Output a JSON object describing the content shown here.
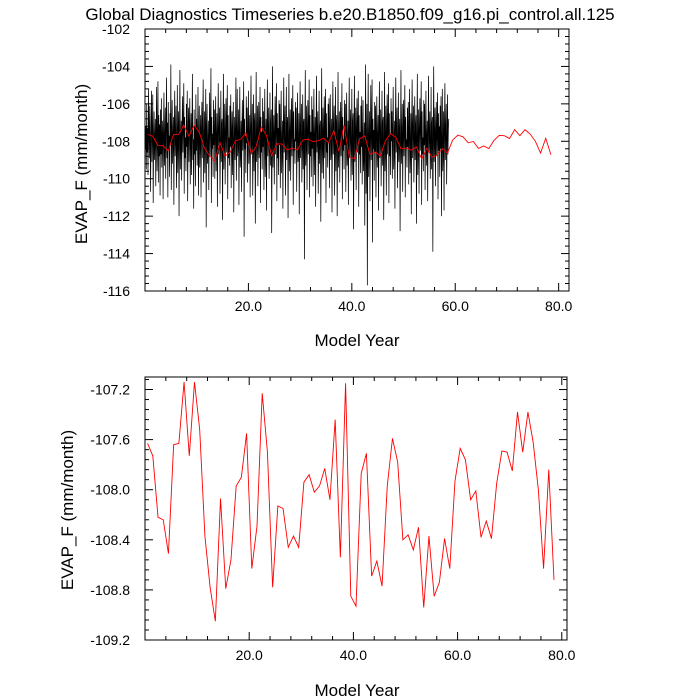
{
  "title": "Global Diagnostics Timeseries b.e20.B1850.f09_g16.pi_control.all.125",
  "colors": {
    "monthly": "#000000",
    "annual": "#ff0000"
  },
  "chart_data": [
    {
      "type": "line",
      "name": "monthly-and-annual",
      "xlabel": "Model Year",
      "ylabel": "EVAP_F (mm/month)",
      "xlim": [
        0.0,
        82.0
      ],
      "ylim": [
        -116,
        -102
      ],
      "x_ticks": [
        20.0,
        40.0,
        60.0,
        80.0
      ],
      "x_tick_labels": [
        "20.0",
        "40.0",
        "60.0",
        "80.0"
      ],
      "y_ticks": [
        -116,
        -114,
        -112,
        -110,
        -108,
        -106,
        -104,
        -102
      ],
      "y_tick_labels": [
        "-116",
        "-114",
        "-112",
        "-110",
        "-108",
        "-106",
        "-104",
        "-102"
      ],
      "series": [
        {
          "name": "monthly",
          "color": "#000000",
          "x_start": 0.0,
          "x_step": 0.0833333,
          "values": [
            -106.4,
            -108.4,
            -107.2,
            -109.5,
            -106.0,
            -108.6,
            -107.3,
            -109.8,
            -105.2,
            -107.7,
            -108.9,
            -106.1,
            -108.0,
            -110.7,
            -107.0,
            -105.3,
            -109.1,
            -107.6,
            -105.5,
            -111.3,
            -108.1,
            -106.4,
            -109.0,
            -107.9,
            -106.8,
            -110.4,
            -107.4,
            -105.1,
            -109.6,
            -108.2,
            -104.8,
            -110.2,
            -106.6,
            -108.8,
            -107.1,
            -110.9,
            -106.3,
            -108.7,
            -105.7,
            -109.4,
            -107.8,
            -106.9,
            -111.1,
            -107.5,
            -105.4,
            -109.3,
            -108.3,
            -106.2,
            -110.0,
            -107.3,
            -104.6,
            -108.9,
            -107.0,
            -111.0,
            -105.9,
            -108.5,
            -107.7,
            -109.9,
            -106.5,
            -108.1,
            -103.9,
            -110.6,
            -107.6,
            -105.8,
            -109.2,
            -108.0,
            -106.7,
            -111.4,
            -107.2,
            -105.3,
            -108.8,
            -107.9,
            -106.1,
            -110.5,
            -108.4,
            -105.0,
            -109.7,
            -107.5,
            -106.4,
            -112.0,
            -107.4,
            -104.2,
            -109.5,
            -108.2,
            -106.9,
            -110.1,
            -107.3,
            -105.6,
            -108.6,
            -107.1,
            -104.9,
            -110.8,
            -106.7,
            -108.9,
            -107.8,
            -109.6,
            -106.0,
            -108.3,
            -105.3,
            -111.2,
            -107.6,
            -106.2,
            -109.1,
            -107.0,
            -105.7,
            -110.3,
            -108.0,
            -106.5,
            -109.8,
            -107.4,
            -104.4,
            -109.0,
            -107.9,
            -111.6,
            -106.3,
            -108.7,
            -107.2,
            -110.4,
            -105.5,
            -108.5,
            -106.8,
            -109.3,
            -107.6,
            -105.1,
            -110.9,
            -107.8,
            -106.1,
            -109.4,
            -108.1,
            -106.6,
            -111.0,
            -107.3,
            -105.9,
            -108.9,
            -107.0,
            -104.7,
            -110.2,
            -108.3,
            -106.4,
            -109.7,
            -107.5,
            -105.2,
            -112.6,
            -107.1,
            -106.0,
            -109.2,
            -108.6,
            -106.9,
            -110.6,
            -107.7,
            -105.4,
            -108.8,
            -107.2,
            -104.1,
            -111.3,
            -106.7,
            -108.4,
            -107.6,
            -109.9,
            -105.8,
            -108.2,
            -106.3,
            -110.0,
            -107.4,
            -105.6,
            -109.6,
            -108.0,
            -106.5,
            -111.5,
            -107.3,
            -104.9,
            -108.7,
            -107.9,
            -106.2,
            -110.8,
            -108.5,
            -105.3,
            -109.1,
            -107.1,
            -106.8,
            -112.2,
            -107.5,
            -104.4,
            -109.5,
            -108.1,
            -106.0,
            -110.3,
            -107.7,
            -105.7,
            -108.6,
            -107.0,
            -105.0,
            -111.1,
            -106.6,
            -108.9,
            -107.8,
            -109.3,
            -106.1,
            -108.3,
            -105.5,
            -110.5,
            -107.6,
            -106.4,
            -109.8,
            -107.2,
            -105.9,
            -111.8,
            -108.0,
            -106.7,
            -109.0,
            -107.4,
            -104.6,
            -110.1,
            -107.9,
            -105.2,
            -108.8,
            -108.2,
            -106.3,
            -111.4,
            -107.5,
            -105.1,
            -109.4,
            -108.6,
            -106.9,
            -110.7,
            -107.3,
            -105.8,
            -108.5,
            -107.1,
            -104.8,
            -113.1,
            -106.8,
            -108.4,
            -107.7,
            -109.7,
            -105.6,
            -108.1,
            -106.2,
            -110.2,
            -107.5,
            -105.3,
            -109.2,
            -108.0,
            -106.6,
            -111.0,
            -107.2,
            -104.5,
            -108.7,
            -107.9,
            -106.0,
            -110.9,
            -108.4,
            -105.5,
            -109.6,
            -107.0,
            -106.5,
            -112.4,
            -107.8,
            -104.3,
            -109.1,
            -108.2,
            -106.1,
            -110.4,
            -107.6,
            -105.9,
            -108.9,
            -107.3,
            -105.1,
            -111.3,
            -106.7,
            -108.6,
            -107.5,
            -109.5,
            -105.7,
            -108.3,
            -106.4,
            -110.6,
            -107.4,
            -105.2,
            -109.9,
            -108.1,
            -106.8,
            -111.7,
            -107.1,
            -104.7,
            -108.8,
            -107.8,
            -106.2,
            -110.0,
            -108.5,
            -105.4,
            -109.3,
            -107.2,
            -106.3,
            -112.9,
            -107.9,
            -104.0,
            -109.4,
            -108.0,
            -106.6,
            -110.3,
            -107.6,
            -105.6,
            -108.7,
            -107.0,
            -104.9,
            -111.2,
            -106.5,
            -108.9,
            -107.3,
            -109.8,
            -105.8,
            -108.2,
            -106.0,
            -110.5,
            -107.7,
            -105.3,
            -109.7,
            -108.4,
            -106.9,
            -111.6,
            -107.4,
            -104.6,
            -108.6,
            -107.5,
            -106.1,
            -110.9,
            -108.3,
            -105.1,
            -109.0,
            -107.1,
            -106.7,
            -112.1,
            -107.8,
            -104.4,
            -109.6,
            -108.1,
            -106.3,
            -110.1,
            -107.5,
            -105.7,
            -108.8,
            -107.2,
            -105.0,
            -111.4,
            -106.4,
            -108.5,
            -107.9,
            -109.2,
            -105.9,
            -108.0,
            -106.2,
            -110.7,
            -107.6,
            -105.4,
            -109.1,
            -108.6,
            -106.5,
            -111.9,
            -107.3,
            -104.8,
            -108.9,
            -107.7,
            -106.0,
            -110.2,
            -108.2,
            -105.5,
            -109.5,
            -107.0,
            -106.8,
            -114.3,
            -107.6,
            -104.2,
            -109.3,
            -108.3,
            -106.1,
            -110.6,
            -107.4,
            -105.8,
            -108.7,
            -107.1,
            -104.7,
            -111.0,
            -106.6,
            -108.8,
            -107.5,
            -109.9,
            -105.6,
            -108.4,
            -106.3,
            -110.4,
            -107.8,
            -105.2,
            -109.8,
            -108.0,
            -106.7,
            -111.5,
            -107.2,
            -104.5,
            -108.6,
            -107.9,
            -106.4,
            -110.8,
            -108.5,
            -105.3,
            -109.2,
            -107.3,
            -106.9,
            -112.3,
            -107.7,
            -104.1,
            -109.7,
            -108.2,
            -106.2,
            -110.0,
            -107.6,
            -105.6,
            -108.9,
            -107.0,
            -105.2,
            -111.3,
            -106.5,
            -108.6,
            -107.8,
            -109.4,
            -106.0,
            -108.1,
            -105.7,
            -110.5,
            -107.4,
            -105.5,
            -109.0,
            -108.4,
            -106.8,
            -111.8,
            -107.2,
            -104.8,
            -108.7,
            -107.6,
            -106.1,
            -110.9,
            -108.3,
            -105.1,
            -109.6,
            -107.1,
            -106.6,
            -112.0,
            -108.0,
            -104.3,
            -109.4,
            -108.1,
            -106.4,
            -110.2,
            -107.5,
            -105.9,
            -108.8,
            -107.3,
            -104.9,
            -111.1,
            -106.7,
            -108.5,
            -107.9,
            -109.5,
            -105.8,
            -108.2,
            -106.0,
            -110.7,
            -107.6,
            -105.4,
            -109.3,
            -108.6,
            -106.9,
            -111.4,
            -107.1,
            -104.6,
            -108.9,
            -107.7,
            -106.3,
            -110.1,
            -108.4,
            -105.2,
            -109.8,
            -107.0,
            -106.5,
            -112.7,
            -107.8,
            -104.5,
            -109.1,
            -108.0,
            -106.2,
            -110.6,
            -107.4,
            -105.7,
            -108.6,
            -107.2,
            -105.3,
            -111.5,
            -106.6,
            -108.7,
            -107.5,
            -109.7,
            -106.1,
            -108.3,
            -105.6,
            -110.3,
            -107.9,
            -105.8,
            -109.6,
            -108.8,
            -107.0,
            -112.5,
            -107.3,
            -103.9,
            -110.8,
            -108.5,
            -106.0,
            -115.7,
            -107.6,
            -104.4,
            -109.9,
            -108.2,
            -106.4,
            -111.2,
            -107.7,
            -105.0,
            -109.0,
            -107.1,
            -104.7,
            -113.4,
            -106.8,
            -108.4,
            -107.4,
            -110.1,
            -105.9,
            -108.6,
            -106.1,
            -111.0,
            -107.5,
            -105.6,
            -109.4,
            -108.1,
            -106.6,
            -111.7,
            -107.2,
            -104.8,
            -108.9,
            -107.8,
            -106.3,
            -110.4,
            -108.0,
            -105.3,
            -109.3,
            -107.0,
            -106.7,
            -112.2,
            -107.9,
            -104.3,
            -109.6,
            -108.3,
            -106.1,
            -110.9,
            -107.4,
            -105.5,
            -108.7,
            -107.2,
            -104.9,
            -111.3,
            -106.5,
            -108.8,
            -107.6,
            -109.8,
            -105.7,
            -108.0,
            -106.4,
            -110.0,
            -107.3,
            -105.1,
            -109.5,
            -108.5,
            -106.9,
            -111.6,
            -107.1,
            -104.6,
            -108.6,
            -107.7,
            -106.2,
            -110.5,
            -108.2,
            -105.4,
            -109.1,
            -107.5,
            -106.8,
            -112.8,
            -107.8,
            -104.2,
            -109.2,
            -108.0,
            -106.0,
            -110.7,
            -107.6,
            -105.8,
            -108.8,
            -107.3,
            -105.0,
            -111.0,
            -106.7,
            -108.4,
            -107.9,
            -109.4,
            -106.2,
            -108.3,
            -105.9,
            -110.3,
            -107.4,
            -105.2,
            -109.7,
            -108.6,
            -106.5,
            -111.9,
            -107.0,
            -104.7,
            -108.9,
            -107.5,
            -106.1,
            -110.2,
            -108.1,
            -105.6,
            -109.0,
            -107.2,
            -106.6,
            -112.4,
            -107.7,
            -104.4,
            -109.8,
            -108.4,
            -106.3,
            -110.8,
            -107.3,
            -105.7,
            -108.5,
            -107.0,
            -104.8,
            -111.4,
            -106.4,
            -108.7,
            -107.8,
            -109.6,
            -105.8,
            -108.2,
            -106.0,
            -110.6,
            -107.6,
            -105.3,
            -109.3,
            -108.0,
            -106.9,
            -111.2,
            -107.4,
            -104.5,
            -108.6,
            -107.9,
            -106.4,
            -110.0,
            -108.3,
            -105.1,
            -109.5,
            -107.1,
            -106.7,
            -113.9,
            -107.5,
            -104.0,
            -109.1,
            -108.1,
            -106.2,
            -110.4,
            -107.7,
            -105.9,
            -108.8,
            -107.4,
            -105.4,
            -111.1,
            -106.5,
            -108.5,
            -107.2,
            -109.9,
            -106.1,
            -108.4,
            -105.6,
            -112.0,
            -107.8,
            -105.2,
            -109.6,
            -108.6,
            -106.4,
            -111.7,
            -107.0,
            -104.9,
            -109.0,
            -107.6,
            -106.0,
            -110.3,
            -108.2,
            -105.5,
            -108.7,
            -107.3,
            -106.8
          ]
        },
        {
          "name": "annual-mean",
          "color": "#ff0000",
          "x_start": 0.5,
          "x_step": 1.0,
          "values": [
            -107.63,
            -107.73,
            -108.22,
            -108.24,
            -108.51,
            -107.64,
            -107.63,
            -107.14,
            -107.73,
            -107.14,
            -107.52,
            -108.37,
            -108.78,
            -109.05,
            -108.07,
            -108.79,
            -108.56,
            -107.97,
            -107.9,
            -107.55,
            -108.63,
            -108.29,
            -107.23,
            -107.7,
            -108.78,
            -108.13,
            -108.15,
            -108.46,
            -108.37,
            -108.46,
            -107.94,
            -107.88,
            -108.02,
            -107.97,
            -107.83,
            -108.08,
            -107.44,
            -108.54,
            -107.15,
            -108.85,
            -108.93,
            -107.87,
            -107.71,
            -108.69,
            -108.57,
            -108.77,
            -107.97,
            -107.59,
            -107.78,
            -108.4,
            -108.36,
            -108.48,
            -108.3,
            -108.94,
            -108.37,
            -108.85,
            -108.74,
            -108.39,
            -108.63,
            -107.93,
            -107.67,
            -107.76,
            -108.08,
            -108.01,
            -108.38,
            -108.25,
            -108.39,
            -107.95,
            -107.69,
            -107.7,
            -107.85,
            -107.38,
            -107.7,
            -107.38,
            -107.62,
            -108.0,
            -108.63,
            -107.84,
            -108.72
          ]
        }
      ]
    },
    {
      "type": "line",
      "name": "annual-mean-zoom",
      "xlabel": "Model Year",
      "ylabel": "EVAP_F (mm/month)",
      "xlim": [
        0.0,
        81.0
      ],
      "ylim": [
        -109.2,
        -107.1
      ],
      "x_ticks": [
        20.0,
        40.0,
        60.0,
        80.0
      ],
      "x_tick_labels": [
        "20.0",
        "40.0",
        "60.0",
        "80.0"
      ],
      "y_ticks": [
        -109.2,
        -108.8,
        -108.4,
        -108.0,
        -107.6,
        -107.2
      ],
      "y_tick_labels": [
        "-109.2",
        "-108.8",
        "-108.4",
        "-108.0",
        "-107.6",
        "-107.2"
      ],
      "series": [
        {
          "name": "annual-mean",
          "color": "#ff0000",
          "x_start": 0.5,
          "x_step": 1.0,
          "values": [
            -107.63,
            -107.73,
            -108.22,
            -108.24,
            -108.51,
            -107.64,
            -107.63,
            -107.14,
            -107.73,
            -107.14,
            -107.52,
            -108.37,
            -108.78,
            -109.05,
            -108.07,
            -108.79,
            -108.56,
            -107.97,
            -107.9,
            -107.55,
            -108.63,
            -108.29,
            -107.23,
            -107.7,
            -108.78,
            -108.13,
            -108.15,
            -108.46,
            -108.37,
            -108.46,
            -107.94,
            -107.88,
            -108.02,
            -107.97,
            -107.83,
            -108.08,
            -107.44,
            -108.54,
            -107.15,
            -108.85,
            -108.93,
            -107.87,
            -107.71,
            -108.69,
            -108.57,
            -108.77,
            -107.97,
            -107.59,
            -107.78,
            -108.4,
            -108.36,
            -108.48,
            -108.3,
            -108.94,
            -108.37,
            -108.85,
            -108.74,
            -108.39,
            -108.63,
            -107.93,
            -107.67,
            -107.76,
            -108.08,
            -108.01,
            -108.38,
            -108.25,
            -108.39,
            -107.95,
            -107.69,
            -107.7,
            -107.85,
            -107.38,
            -107.7,
            -107.38,
            -107.62,
            -108.0,
            -108.63,
            -107.84,
            -108.72
          ]
        }
      ]
    }
  ]
}
